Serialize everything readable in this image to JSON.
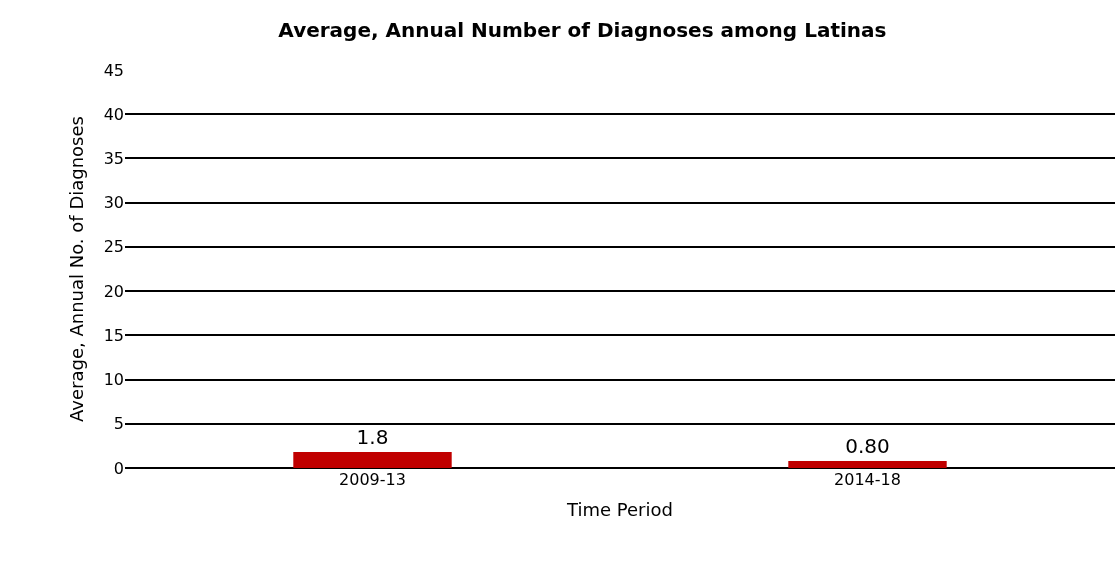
{
  "chart_data": {
    "type": "bar",
    "title": "Average, Annual Number of Diagnoses among Latinas",
    "xlabel": "Time Period",
    "ylabel": "Average, Annual No. of Diagnoses",
    "categories": [
      "2009-13",
      "2014-18"
    ],
    "values": [
      1.8,
      0.8
    ],
    "value_labels": [
      "1.8",
      "0.80"
    ],
    "color": "#c00000",
    "ylim": [
      0,
      45
    ],
    "yticks": [
      0,
      5,
      10,
      15,
      20,
      25,
      30,
      35,
      40,
      45
    ],
    "grid": "y",
    "legend": false
  }
}
